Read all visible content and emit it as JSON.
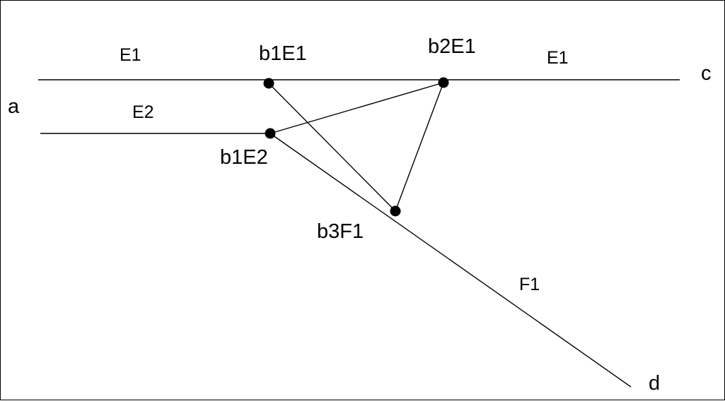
{
  "diagram": {
    "line_color": "#000000",
    "background": "#ffffff",
    "node_labels": {
      "b1E1": "b1E1",
      "b2E1": "b2E1",
      "b1E2": "b1E2",
      "b3F1": "b3F1"
    },
    "edge_labels": {
      "e1_left": "E1",
      "e1_right": "E1",
      "e2": "E2",
      "f1": "F1"
    },
    "end_labels": {
      "a": "a",
      "c": "c",
      "d": "d"
    }
  }
}
